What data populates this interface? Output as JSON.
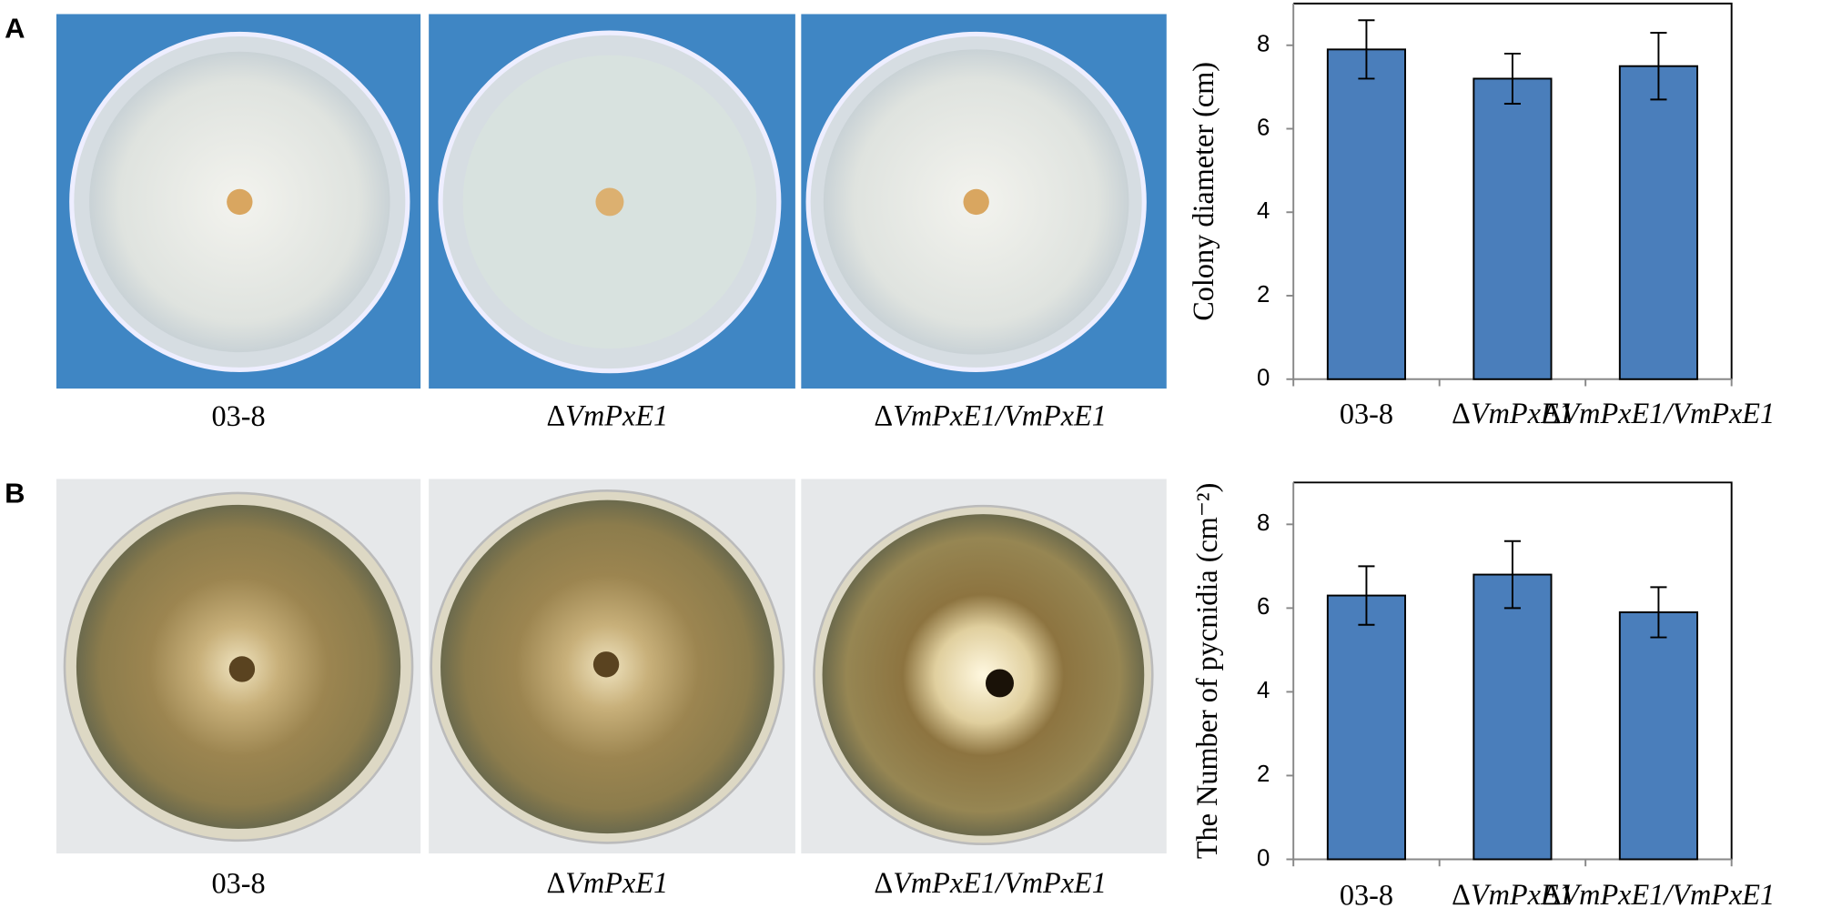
{
  "panels": [
    {
      "letter": "A",
      "photo_labels": [
        "03-8",
        "ΔVmPxE1",
        "ΔVmPxE1/VmPxE1"
      ]
    },
    {
      "letter": "B",
      "photo_labels": [
        "03-8",
        "ΔVmPxE1",
        "ΔVmPxE1/VmPxE1"
      ]
    }
  ],
  "chart_data": [
    {
      "type": "bar",
      "ylabel": "Colony diameter (cm)",
      "categories": [
        "03-8",
        "ΔVmPxE1",
        "ΔVmPxE1/VmPxE1"
      ],
      "values": [
        7.9,
        7.2,
        7.5
      ],
      "errors": [
        0.7,
        0.6,
        0.8
      ],
      "color": "#4a7ebb",
      "ylim": [
        0,
        9
      ],
      "yticks": [
        0,
        2,
        4,
        6,
        8
      ]
    },
    {
      "type": "bar",
      "ylabel": "The Number of pycnidia (cm⁻²)",
      "categories": [
        "03-8",
        "ΔVmPxE1",
        "ΔVmPxE1/VmPxE1"
      ],
      "values": [
        6.3,
        6.8,
        5.9
      ],
      "errors": [
        0.7,
        0.8,
        0.6
      ],
      "color": "#4a7ebb",
      "ylim": [
        0,
        9
      ],
      "yticks": [
        0,
        2,
        4,
        6,
        8
      ]
    }
  ]
}
